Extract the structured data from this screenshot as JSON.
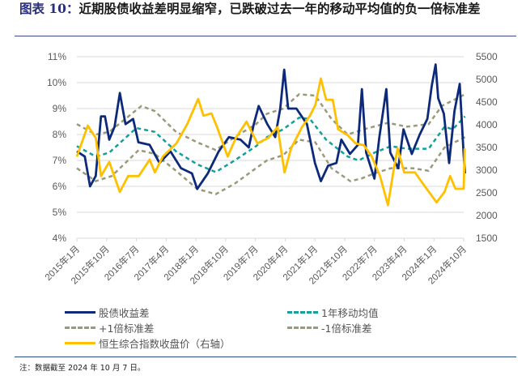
{
  "title": {
    "lead": "图表 10：",
    "text": "近期股债收益差明显缩窄，已跌破过去一年的移动平均值的负一倍标准差"
  },
  "note": "注：数据截至 2024 年 10 月 7 日。",
  "chart_data": {
    "type": "line",
    "x_unit": "months since 2015-01",
    "x_ticks": [
      "2015年1月",
      "2015年10月",
      "2016年7月",
      "2017年4月",
      "2018年1月",
      "2018年10月",
      "2019年7月",
      "2020年4月",
      "2021年1月",
      "2021年10月",
      "2022年7月",
      "2023年4月",
      "2024年1月",
      "2024年10月"
    ],
    "y_left": {
      "ticks": [
        "4%",
        "5%",
        "6%",
        "7%",
        "8%",
        "9%",
        "10%",
        "11%"
      ],
      "range": [
        4,
        11
      ]
    },
    "y_right": {
      "ticks": [
        "1500",
        "2000",
        "2500",
        "3000",
        "3500",
        "4000",
        "4500",
        "5000",
        "5500"
      ],
      "range": [
        1500,
        5500
      ]
    },
    "grid": true,
    "legend_placement": "bottom",
    "series": [
      {
        "name": "股债收益差",
        "axis": "left",
        "color": "#0d2a7a",
        "style": "solid",
        "points": [
          [
            0,
            7.35
          ],
          [
            2.4,
            7.15
          ],
          [
            4,
            6.0
          ],
          [
            5.7,
            6.4
          ],
          [
            7.3,
            8.7
          ],
          [
            8.5,
            8.7
          ],
          [
            9.8,
            7.8
          ],
          [
            11.4,
            8.3
          ],
          [
            13,
            9.6
          ],
          [
            14.7,
            8.4
          ],
          [
            17,
            8.6
          ],
          [
            18.6,
            7.7
          ],
          [
            22,
            7.6
          ],
          [
            25,
            6.9
          ],
          [
            28.3,
            7.35
          ],
          [
            31.5,
            6.7
          ],
          [
            34.8,
            6.5
          ],
          [
            36.4,
            5.9
          ],
          [
            39.6,
            6.5
          ],
          [
            42.9,
            7.35
          ],
          [
            46,
            7.9
          ],
          [
            49.5,
            7.8
          ],
          [
            52,
            7.5
          ],
          [
            53.5,
            8.4
          ],
          [
            55,
            9.1
          ],
          [
            57.6,
            8.4
          ],
          [
            60,
            7.9
          ],
          [
            61.5,
            9.0
          ],
          [
            62.7,
            10.5
          ],
          [
            63.9,
            9.0
          ],
          [
            66.4,
            9.0
          ],
          [
            69.6,
            8.4
          ],
          [
            72,
            6.9
          ],
          [
            73.8,
            6.2
          ],
          [
            76,
            6.8
          ],
          [
            78.5,
            6.9
          ],
          [
            80,
            7.8
          ],
          [
            82.6,
            7.25
          ],
          [
            85,
            7.6
          ],
          [
            86.2,
            9.75
          ],
          [
            87.5,
            7.3
          ],
          [
            90,
            6.3
          ],
          [
            91.5,
            7.9
          ],
          [
            93.6,
            9.75
          ],
          [
            94.8,
            7.3
          ],
          [
            97.2,
            6.7
          ],
          [
            98.8,
            8.2
          ],
          [
            101.3,
            7.25
          ],
          [
            103.7,
            8.0
          ],
          [
            106,
            8.6
          ],
          [
            107.3,
            9.85
          ],
          [
            108.5,
            10.7
          ],
          [
            109.3,
            9.4
          ],
          [
            111,
            8.8
          ],
          [
            112.6,
            6.9
          ],
          [
            114.2,
            8.9
          ],
          [
            115.8,
            9.95
          ],
          [
            117,
            7.2
          ],
          [
            117.4,
            6.5
          ]
        ]
      },
      {
        "name": "1年移动均值",
        "axis": "left",
        "color": "#14a09a",
        "style": "dashed",
        "points": [
          [
            0,
            7.55
          ],
          [
            5.7,
            7.15
          ],
          [
            9.8,
            7.3
          ],
          [
            18,
            8.25
          ],
          [
            23.6,
            8.1
          ],
          [
            30,
            7.35
          ],
          [
            36.4,
            6.85
          ],
          [
            42,
            6.55
          ],
          [
            47.7,
            7.0
          ],
          [
            54.2,
            7.55
          ],
          [
            57.5,
            7.9
          ],
          [
            62.4,
            8.2
          ],
          [
            67.2,
            8.65
          ],
          [
            70.5,
            8.6
          ],
          [
            75.4,
            7.8
          ],
          [
            81.9,
            7.15
          ],
          [
            85.2,
            7.0
          ],
          [
            90,
            7.3
          ],
          [
            95,
            7.55
          ],
          [
            99.8,
            7.45
          ],
          [
            106.4,
            7.45
          ],
          [
            111.2,
            8.3
          ],
          [
            113.7,
            8.2
          ],
          [
            117.4,
            8.7
          ]
        ]
      },
      {
        "name": "+1倍标准差",
        "axis": "left",
        "color": "#9a9a7a",
        "style": "dashed",
        "points": [
          [
            0,
            8.4
          ],
          [
            5.7,
            8.0
          ],
          [
            9.8,
            8.1
          ],
          [
            19.5,
            9.1
          ],
          [
            23.6,
            8.9
          ],
          [
            30,
            8.1
          ],
          [
            36.4,
            7.7
          ],
          [
            42,
            7.4
          ],
          [
            47.7,
            7.9
          ],
          [
            54.2,
            8.4
          ],
          [
            57.5,
            8.8
          ],
          [
            62.4,
            9.0
          ],
          [
            67.2,
            9.55
          ],
          [
            72.1,
            9.5
          ],
          [
            77,
            8.6
          ],
          [
            81.9,
            8.0
          ],
          [
            86.8,
            8.2
          ],
          [
            94.1,
            8.45
          ],
          [
            99.8,
            8.3
          ],
          [
            106.4,
            8.4
          ],
          [
            110.4,
            9.1
          ],
          [
            117.4,
            9.55
          ]
        ]
      },
      {
        "name": "-1倍标准差",
        "axis": "left",
        "color": "#9a9a7a",
        "style": "dashed",
        "points": [
          [
            0,
            6.7
          ],
          [
            5.7,
            6.2
          ],
          [
            10.6,
            6.4
          ],
          [
            18.7,
            7.4
          ],
          [
            23.6,
            7.25
          ],
          [
            30,
            6.6
          ],
          [
            36.4,
            5.9
          ],
          [
            42,
            5.7
          ],
          [
            47.7,
            6.1
          ],
          [
            54.2,
            6.7
          ],
          [
            57.5,
            7.0
          ],
          [
            62.4,
            7.2
          ],
          [
            67.2,
            7.8
          ],
          [
            72.1,
            7.7
          ],
          [
            77,
            6.7
          ],
          [
            82.7,
            6.2
          ],
          [
            86,
            6.3
          ],
          [
            90,
            6.5
          ],
          [
            95,
            6.7
          ],
          [
            101.5,
            6.7
          ],
          [
            106.4,
            6.6
          ],
          [
            111.2,
            7.5
          ],
          [
            117.4,
            7.9
          ]
        ]
      },
      {
        "name": "恒生综合指数收盘价（右轴）",
        "axis": "right",
        "color": "#ffc000",
        "style": "solid",
        "points": [
          [
            0,
            3300
          ],
          [
            3.3,
            3980
          ],
          [
            5.7,
            3710
          ],
          [
            7.3,
            2870
          ],
          [
            9.8,
            3180
          ],
          [
            13,
            2520
          ],
          [
            15.5,
            2870
          ],
          [
            18.7,
            2870
          ],
          [
            22,
            3230
          ],
          [
            23.6,
            2950
          ],
          [
            26,
            3300
          ],
          [
            30.1,
            3590
          ],
          [
            33.4,
            4020
          ],
          [
            36.7,
            4570
          ],
          [
            38.3,
            4200
          ],
          [
            40.7,
            4250
          ],
          [
            42.4,
            3950
          ],
          [
            45.6,
            3300
          ],
          [
            48.1,
            3710
          ],
          [
            51.3,
            4070
          ],
          [
            54.6,
            3590
          ],
          [
            57.9,
            3710
          ],
          [
            60.7,
            3950
          ],
          [
            62.8,
            2950
          ],
          [
            64.8,
            3480
          ],
          [
            68.1,
            3950
          ],
          [
            70.5,
            4200
          ],
          [
            72.1,
            4430
          ],
          [
            73.8,
            5020
          ],
          [
            75.4,
            4550
          ],
          [
            77.4,
            4550
          ],
          [
            79,
            3900
          ],
          [
            81.9,
            3770
          ],
          [
            84.3,
            3590
          ],
          [
            86.8,
            3550
          ],
          [
            89.2,
            3300
          ],
          [
            91.7,
            2870
          ],
          [
            94.1,
            2230
          ],
          [
            95.8,
            3000
          ],
          [
            97,
            3480
          ],
          [
            99,
            2950
          ],
          [
            102.3,
            2950
          ],
          [
            104.7,
            2700
          ],
          [
            108.8,
            2290
          ],
          [
            111.2,
            2520
          ],
          [
            112.9,
            2870
          ],
          [
            114.5,
            2590
          ],
          [
            117,
            2590
          ],
          [
            117.3,
            3480
          ]
        ]
      }
    ]
  }
}
